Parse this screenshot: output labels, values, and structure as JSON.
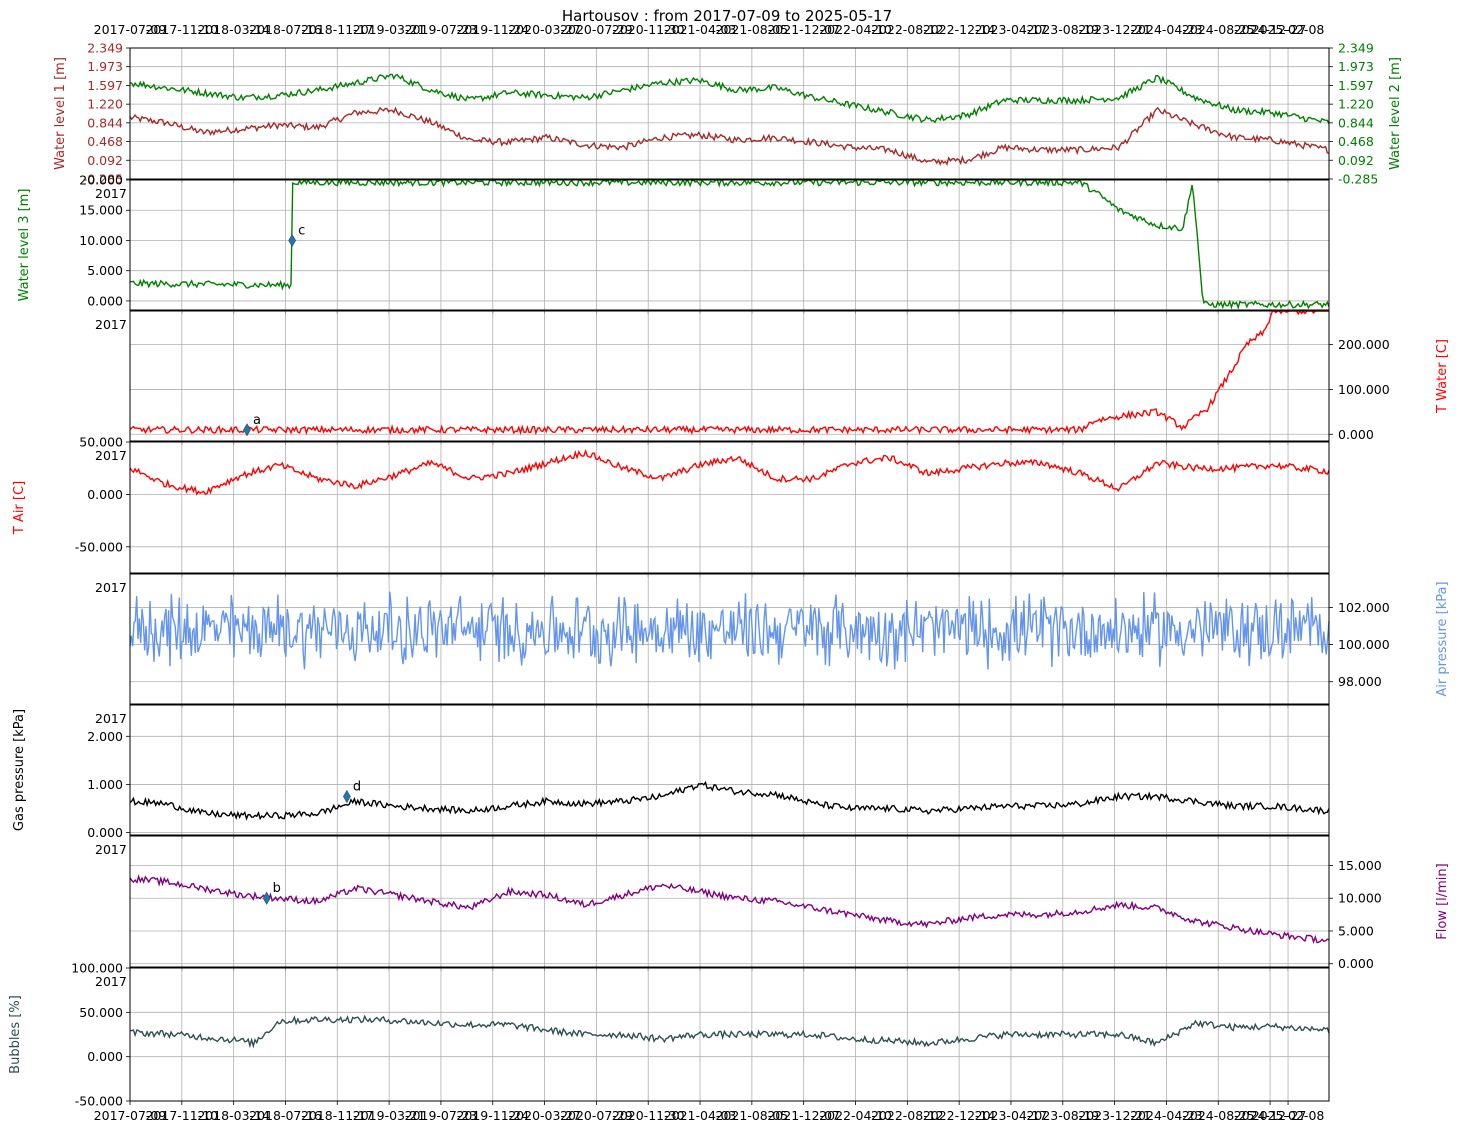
{
  "chart_data": {
    "type": "line",
    "title": "Hartousov : from 2017-07-09 to 2025-05-17",
    "x_start": "2017-07-09",
    "x_end": "2025-05-17",
    "x_ticks": [
      "2017-07-09",
      "2017-11-10",
      "2018-03-14",
      "2018-07-16",
      "2018-11-17",
      "2019-03-21",
      "2019-07-23",
      "2019-11-24",
      "2020-03-27",
      "2020-07-29",
      "2020-11-30",
      "2021-04-03",
      "2021-08-05",
      "2021-12-07",
      "2022-04-10",
      "2022-08-12",
      "2022-12-14",
      "2023-04-17",
      "2023-08-19",
      "2023-12-21",
      "2024-04-23",
      "2024-08-25",
      "2024-12-27",
      "2025-02-08"
    ],
    "top_tick_labels": [
      "2017-07-09",
      "2017-11-10",
      "2018-03-14",
      "2018-07-16",
      "2018-11-17",
      "2019-03-21",
      "2019-07-23",
      "2019-11-24",
      "2020-03-27",
      "2020-07-29",
      "2020-11-30",
      "2021-04-03",
      "2021-08-05",
      "2021-12-07",
      "2022-04-10",
      "2022-08-12",
      "2022-12-14",
      "2023-04-17",
      "2023-08-19",
      "2023-12-21",
      "2024-04-23",
      "2024-08-25",
      "2024-12-27",
      "2025-02-08"
    ],
    "bottom_tick_labels": [
      "2017-07-09",
      "2017-11-10",
      "2018-03-14",
      "2018-07-16",
      "2018-11-17",
      "2019-03-21",
      "2019-07-23",
      "2019-11-24",
      "2020-03-27",
      "2020-07-29",
      "2020-11-30",
      "2021-04-03",
      "2021-08-05",
      "2021-12-07",
      "2022-04-10",
      "2022-08-12",
      "2022-12-14",
      "2023-04-17",
      "2023-08-19",
      "2023-12-21",
      "2024-04-23",
      "2024-08-25",
      "2024-12-27",
      "2025-02-08"
    ],
    "grid": true,
    "panels": [
      {
        "ylim": [
          -0.285,
          2.349
        ],
        "left_label": "Water level 1 [m]",
        "left_color": "#a52a2a",
        "right_label": "Water level 2 [m]",
        "right_color": "#008000",
        "left_ticks": [
          "2.349",
          "1.973",
          "1.597",
          "1.220",
          "0.844",
          "0.468",
          "0.092",
          "-0.285"
        ],
        "right_ticks": [
          "2.349",
          "1.973",
          "1.597",
          "1.220",
          "0.844",
          "0.468",
          "0.092",
          "-0.285"
        ],
        "tick_values": [
          2.349,
          1.973,
          1.597,
          1.22,
          0.844,
          0.468,
          0.092,
          -0.285
        ],
        "series": [
          {
            "name": "Water level 1 [m]",
            "color": "#a52a2a",
            "x": [
              "2017-07-09",
              "2017-10-01",
              "2018-01-01",
              "2018-04-01",
              "2018-07-01",
              "2018-10-01",
              "2019-01-01",
              "2019-04-01",
              "2019-07-01",
              "2019-10-01",
              "2020-01-01",
              "2020-04-01",
              "2020-07-01",
              "2020-10-01",
              "2021-01-01",
              "2021-04-01",
              "2021-07-01",
              "2021-10-01",
              "2022-01-01",
              "2022-04-01",
              "2022-07-01",
              "2022-10-01",
              "2023-01-01",
              "2023-04-01",
              "2023-07-01",
              "2023-10-01",
              "2024-01-01",
              "2024-04-01",
              "2024-07-01",
              "2024-10-01",
              "2025-01-01",
              "2025-05-17"
            ],
            "values": [
              0.95,
              0.85,
              0.65,
              0.72,
              0.8,
              0.75,
              1.05,
              1.1,
              0.85,
              0.5,
              0.45,
              0.55,
              0.4,
              0.35,
              0.55,
              0.6,
              0.5,
              0.55,
              0.45,
              0.35,
              0.3,
              0.05,
              0.1,
              0.35,
              0.3,
              0.3,
              0.35,
              1.1,
              0.8,
              0.55,
              0.5,
              0.3
            ]
          },
          {
            "name": "Water level 2 [m]",
            "color": "#008000",
            "x": [
              "2017-07-09",
              "2017-10-01",
              "2018-01-01",
              "2018-04-01",
              "2018-07-01",
              "2018-10-01",
              "2019-01-01",
              "2019-04-01",
              "2019-07-01",
              "2019-10-01",
              "2020-01-01",
              "2020-04-01",
              "2020-07-01",
              "2020-10-01",
              "2021-01-01",
              "2021-04-01",
              "2021-07-01",
              "2021-10-01",
              "2022-01-01",
              "2022-04-01",
              "2022-07-01",
              "2022-10-01",
              "2023-01-01",
              "2023-04-01",
              "2023-07-01",
              "2023-10-01",
              "2024-01-01",
              "2024-04-01",
              "2024-07-01",
              "2024-10-01",
              "2025-01-01",
              "2025-05-17"
            ],
            "values": [
              1.65,
              1.55,
              1.45,
              1.35,
              1.4,
              1.5,
              1.65,
              1.8,
              1.5,
              1.3,
              1.45,
              1.4,
              1.35,
              1.5,
              1.65,
              1.7,
              1.5,
              1.55,
              1.35,
              1.2,
              1.05,
              0.9,
              1.0,
              1.3,
              1.3,
              1.3,
              1.35,
              1.75,
              1.35,
              1.1,
              1.05,
              0.85
            ]
          }
        ]
      },
      {
        "ylim": [
          -1500,
          20000
        ],
        "left_label": "Water level 3 [m]",
        "left_color": "#008000",
        "left_ticks": [
          "20.000",
          "15.000",
          "10.000",
          "5.000",
          "0.000"
        ],
        "tick_values": [
          20000,
          15000,
          10000,
          5000,
          0
        ],
        "corner_label": "2017",
        "series": [
          {
            "name": "Water level 3 [m]",
            "color": "#008000",
            "x": [
              "2017-07-09",
              "2018-07-31",
              "2018-08-02",
              "2023-10-01",
              "2023-11-15",
              "2024-01-01",
              "2024-04-01",
              "2024-06-01",
              "2024-06-25",
              "2024-07-20",
              "2025-05-17"
            ],
            "values": [
              2900,
              2600,
              19600,
              19600,
              17500,
              15000,
              12500,
              12000,
              19500,
              -600,
              -600
            ]
          }
        ],
        "annotations": [
          {
            "label": "c",
            "x": "2018-08-01",
            "y": 10000
          }
        ]
      },
      {
        "ylim": [
          -15000,
          275000
        ],
        "right_label": "T Water [C]",
        "right_color": "#ff0000",
        "right_ticks": [
          "200.000",
          "100.000",
          "0.000"
        ],
        "tick_values": [
          200000,
          100000,
          0
        ],
        "corner_label": "2017",
        "series": [
          {
            "name": "T Water [C]",
            "color": "#ff0000",
            "x": [
              "2017-07-09",
              "2023-10-01",
              "2023-11-01",
              "2024-01-01",
              "2024-04-01",
              "2024-06-01",
              "2024-08-01",
              "2024-10-01",
              "2024-11-01",
              "2024-12-15",
              "2025-01-01",
              "2025-05-17"
            ],
            "values": [
              10000,
              10000,
              30000,
              40000,
              50000,
              15000,
              60000,
              150000,
              200000,
              230000,
              275000,
              275000
            ]
          }
        ],
        "annotations": [
          {
            "label": "a",
            "x": "2018-04-15",
            "y": 10000
          }
        ]
      },
      {
        "ylim": [
          -75000,
          50000
        ],
        "left_label": "T Air [C]",
        "left_color": "#ff0000",
        "left_ticks": [
          "50.000",
          "0.000",
          "-50.000"
        ],
        "tick_values": [
          50000,
          0,
          -50000
        ],
        "corner_label": "2017",
        "series": [
          {
            "name": "T Air [C]",
            "color": "#ff0000",
            "x": [
              "2017-07-09",
              "2017-10-01",
              "2018-01-01",
              "2018-04-01",
              "2018-07-01",
              "2018-10-01",
              "2019-01-01",
              "2019-04-01",
              "2019-07-01",
              "2019-10-01",
              "2020-01-01",
              "2020-04-01",
              "2020-07-01",
              "2020-10-01",
              "2021-01-01",
              "2021-04-01",
              "2021-07-01",
              "2021-10-01",
              "2022-01-01",
              "2022-04-01",
              "2022-07-01",
              "2022-10-01",
              "2023-01-01",
              "2023-04-01",
              "2023-07-01",
              "2023-10-01",
              "2024-01-01",
              "2024-04-01",
              "2024-07-01",
              "2024-10-01",
              "2025-01-01",
              "2025-05-17"
            ],
            "values": [
              25000,
              10000,
              2000,
              18000,
              28000,
              15000,
              8000,
              18000,
              30000,
              15000,
              20000,
              30000,
              40000,
              25000,
              15000,
              28000,
              35000,
              15000,
              15000,
              30000,
              35000,
              20000,
              25000,
              30000,
              30000,
              20000,
              5000,
              30000,
              25000,
              25000,
              28000,
              22000
            ]
          }
        ]
      },
      {
        "ylim": [
          96800,
          103800
        ],
        "right_label": "Air pressure [kPa]",
        "right_color": "#6495ed",
        "right_ticks": [
          "102.000",
          "100.000",
          "98.000"
        ],
        "tick_values": [
          102000,
          100000,
          98000
        ],
        "corner_label": "2017",
        "series": [
          {
            "name": "Air pressure [kPa]",
            "color": "#6495ed",
            "mean": 100800,
            "amplitude": 2200,
            "x_start": "2017-07-09",
            "x_end": "2025-05-17"
          }
        ]
      },
      {
        "ylim": [
          -50,
          2650
        ],
        "left_label": "Gas pressure [kPa]",
        "left_color": "#000000",
        "left_ticks": [
          "2.000",
          "1.000",
          "0.000"
        ],
        "tick_values": [
          2000,
          1000,
          0
        ],
        "corner_label": "2017",
        "series": [
          {
            "name": "Gas pressure [kPa]",
            "color": "#000000",
            "x": [
              "2017-07-09",
              "2017-10-01",
              "2018-01-01",
              "2018-04-01",
              "2018-07-01",
              "2018-10-01",
              "2019-01-01",
              "2019-04-01",
              "2019-07-01",
              "2019-10-01",
              "2020-01-01",
              "2020-04-01",
              "2020-07-01",
              "2020-10-01",
              "2021-01-01",
              "2021-04-01",
              "2021-07-01",
              "2021-10-01",
              "2022-01-01",
              "2022-04-01",
              "2022-07-01",
              "2022-10-01",
              "2023-01-01",
              "2023-04-01",
              "2023-07-01",
              "2023-10-01",
              "2024-01-01",
              "2024-04-01",
              "2024-07-01",
              "2024-10-01",
              "2025-01-01",
              "2025-05-17"
            ],
            "values": [
              650,
              600,
              400,
              350,
              350,
              400,
              650,
              550,
              500,
              450,
              550,
              650,
              600,
              650,
              750,
              1000,
              850,
              800,
              600,
              500,
              500,
              450,
              500,
              550,
              550,
              600,
              750,
              750,
              650,
              550,
              550,
              450
            ]
          }
        ],
        "annotations": [
          {
            "label": "d",
            "x": "2018-12-10",
            "y": 750
          }
        ]
      },
      {
        "ylim": [
          -500,
          19500
        ],
        "right_label": "Flow [l/min]",
        "right_color": "#800080",
        "right_ticks": [
          "15.000",
          "10.000",
          "5.000",
          "0.000"
        ],
        "tick_values": [
          15000,
          10000,
          5000,
          0
        ],
        "corner_label": "2017",
        "series": [
          {
            "name": "Flow [l/min]",
            "color": "#800080",
            "x": [
              "2017-07-09",
              "2017-10-01",
              "2018-01-01",
              "2018-04-01",
              "2018-07-01",
              "2018-10-01",
              "2019-01-01",
              "2019-04-01",
              "2019-07-01",
              "2019-10-01",
              "2020-01-01",
              "2020-04-01",
              "2020-07-01",
              "2020-10-01",
              "2021-01-01",
              "2021-04-01",
              "2021-07-01",
              "2021-10-01",
              "2022-01-01",
              "2022-04-01",
              "2022-07-01",
              "2022-10-01",
              "2023-01-01",
              "2023-04-01",
              "2023-07-01",
              "2023-10-01",
              "2024-01-01",
              "2024-04-01",
              "2024-07-01",
              "2024-10-01",
              "2025-01-01",
              "2025-05-17"
            ],
            "values": [
              13000,
              12500,
              11500,
              10500,
              10000,
              9500,
              11500,
              10500,
              9500,
              8500,
              11000,
              10500,
              9000,
              10500,
              12000,
              11000,
              10000,
              9500,
              8500,
              7500,
              6500,
              6000,
              7000,
              7500,
              7500,
              8000,
              9000,
              8500,
              6500,
              5500,
              4500,
              3500
            ]
          }
        ],
        "annotations": [
          {
            "label": "b",
            "x": "2018-06-01",
            "y": 10000
          }
        ]
      },
      {
        "ylim": [
          -50000,
          100000
        ],
        "left_label": "Bubbles [%]",
        "left_color": "#2f4f4f",
        "left_ticks": [
          "100.000",
          "50.000",
          "0.000",
          "-50.000"
        ],
        "tick_values": [
          100000,
          50000,
          0,
          -50000
        ],
        "corner_label": "2017",
        "series": [
          {
            "name": "Bubbles [%]",
            "color": "#2f4f4f",
            "x": [
              "2017-07-09",
              "2017-10-01",
              "2018-01-01",
              "2018-04-01",
              "2018-05-01",
              "2018-07-01",
              "2018-10-01",
              "2019-01-01",
              "2019-04-01",
              "2019-07-01",
              "2019-10-01",
              "2020-01-01",
              "2020-04-01",
              "2020-07-01",
              "2020-10-01",
              "2021-01-01",
              "2021-04-01",
              "2021-07-01",
              "2021-10-01",
              "2022-01-01",
              "2022-04-01",
              "2022-07-01",
              "2022-10-01",
              "2023-01-01",
              "2023-04-01",
              "2023-07-01",
              "2023-10-01",
              "2024-01-01",
              "2024-04-01",
              "2024-07-01",
              "2024-10-01",
              "2025-01-01",
              "2025-05-17"
            ],
            "values": [
              27000,
              26000,
              22000,
              18000,
              15000,
              40000,
              42000,
              42000,
              41000,
              38000,
              36000,
              36000,
              30000,
              25000,
              25000,
              20000,
              25000,
              25000,
              25000,
              25000,
              20000,
              18000,
              15000,
              20000,
              25000,
              25000,
              25000,
              25000,
              15000,
              38000,
              33000,
              34000,
              30000
            ]
          }
        ]
      }
    ]
  }
}
